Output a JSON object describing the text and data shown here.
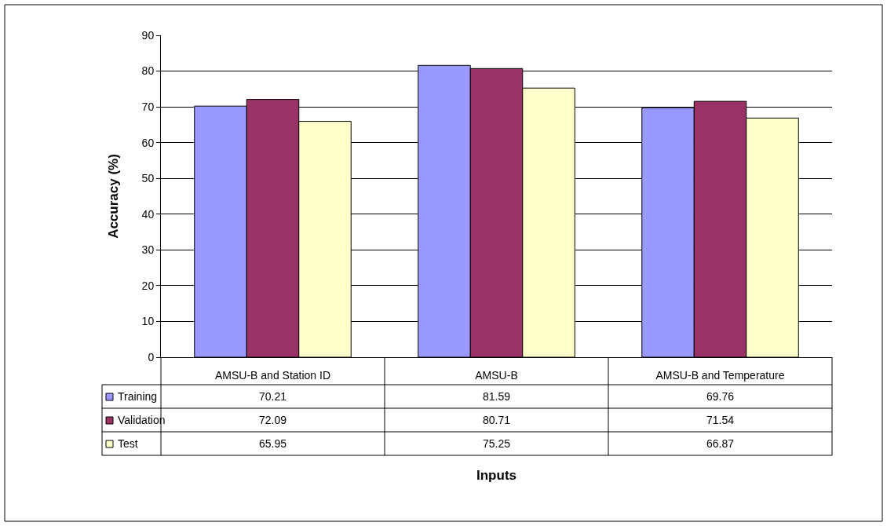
{
  "chart_data": {
    "type": "bar",
    "annotations": [
      "Inputs"
    ],
    "ylabel": "Accuracy (%)",
    "categories": [
      "AMSU-B and Station ID",
      "AMSU-B",
      "AMSU-B and Temperature"
    ],
    "series": [
      {
        "name": "Training",
        "color": "#9999ff",
        "values": [
          70.21,
          81.59,
          69.76
        ]
      },
      {
        "name": "Validation",
        "color": "#993366",
        "values": [
          72.09,
          80.71,
          71.54
        ]
      },
      {
        "name": "Test",
        "color": "#ffffcc",
        "values": [
          65.95,
          75.25,
          66.87
        ]
      }
    ],
    "ylim": [
      0,
      90
    ],
    "yticks": [
      0,
      10,
      20,
      30,
      40,
      50,
      60,
      70,
      80,
      90
    ],
    "grid": "y",
    "data_labels": true,
    "legend": "bottom left"
  }
}
